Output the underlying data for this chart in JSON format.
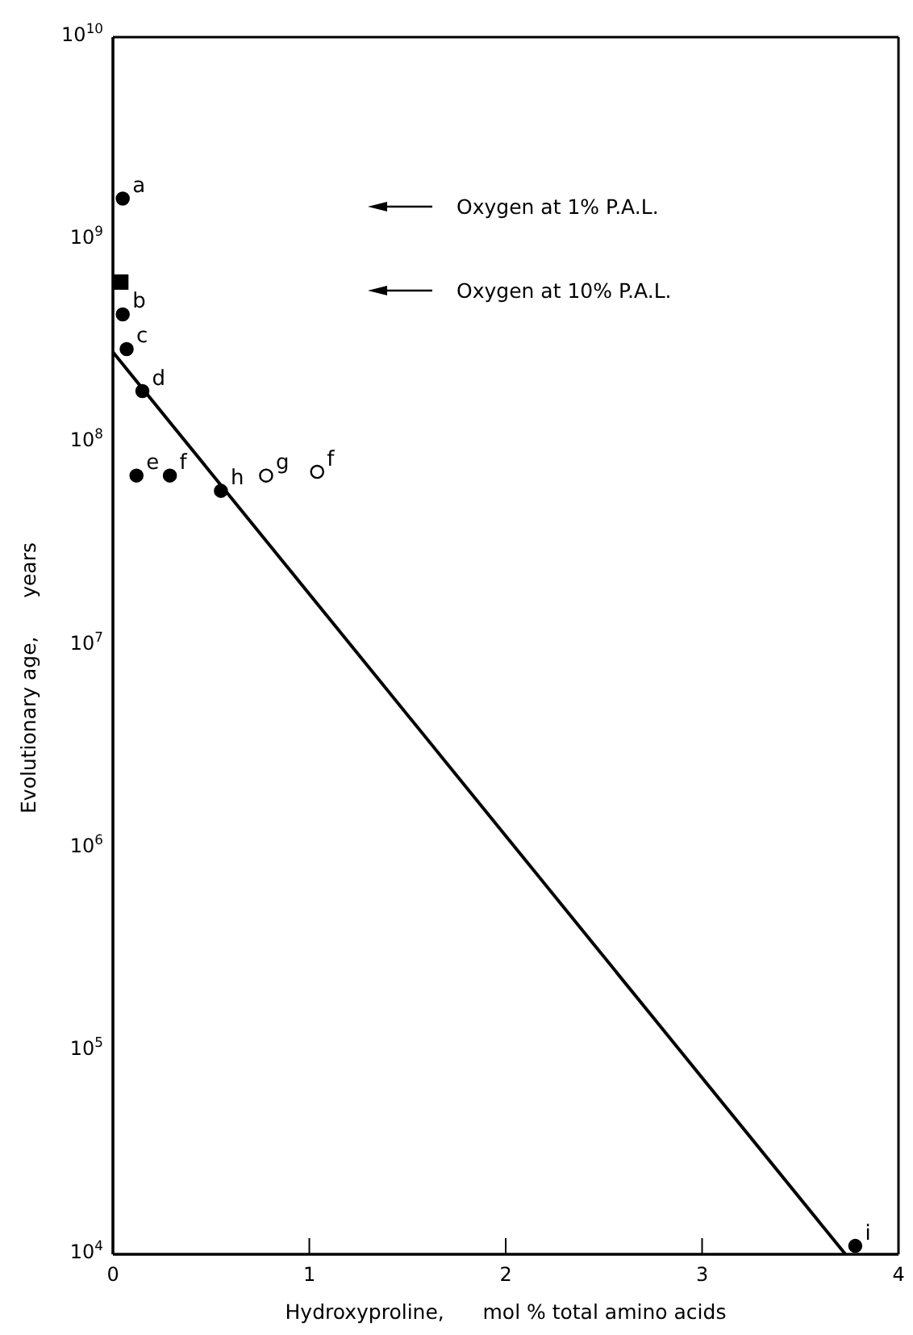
{
  "chart_data": {
    "type": "scatter",
    "xlabel": "Hydroxyproline,      mol % total amino acids",
    "ylabel": "Evolutionary age,      years",
    "log": "y",
    "xlim": [
      0,
      4
    ],
    "ylim": [
      10000,
      10000000000
    ],
    "xticks": [
      0,
      1,
      2,
      3,
      4
    ],
    "yticks": [
      {
        "value": 10000,
        "label": "10$^{4}$"
      },
      {
        "value": 100000,
        "label": "10$^{5}$"
      },
      {
        "value": 1000000,
        "label": "10$^{6}$"
      },
      {
        "value": 10000000,
        "label": "10$^{7}$"
      },
      {
        "value": 100000000,
        "label": "10$^{8}$"
      },
      {
        "value": 1000000000,
        "label": "10$^{9}$"
      },
      {
        "value": 10000000000,
        "label": "10$^{10}$"
      }
    ],
    "grid": false,
    "series": [
      {
        "type": "scatter",
        "marker": "circle",
        "color": "#000000",
        "x": [
          0.05,
          0.05,
          0.07,
          0.15,
          0.12,
          0.29,
          0.55,
          3.78
        ],
        "values": [
          1600000000,
          430000000,
          290000000,
          180000000,
          69000000,
          69000000,
          58000000,
          11000
        ]
      },
      {
        "type": "scatter",
        "marker": "square",
        "color": "#000000",
        "x": [
          0.04
        ],
        "values": [
          620000000
        ]
      },
      {
        "type": "scatter",
        "marker": "circle",
        "color": "#ffffff",
        "x": [
          0.78,
          1.04
        ],
        "values": [
          69000000,
          72000000
        ]
      },
      {
        "type": "line",
        "marker": "none",
        "line_style": "solid",
        "color": "#000000",
        "x": [
          0,
          3.73
        ],
        "values": [
          280000000,
          10000
        ]
      }
    ],
    "annotations": [
      {
        "text": "a",
        "x": 0.05,
        "y": 1600000000
      },
      {
        "text": "b",
        "x": 0.05,
        "y": 430000000
      },
      {
        "text": "c",
        "x": 0.07,
        "y": 290000000
      },
      {
        "text": "d",
        "x": 0.15,
        "y": 180000000
      },
      {
        "text": "e",
        "x": 0.12,
        "y": 69000000
      },
      {
        "text": "f",
        "x": 0.29,
        "y": 69000000
      },
      {
        "text": "h",
        "x": 0.55,
        "y": 58000000
      },
      {
        "text": "i",
        "x": 3.78,
        "y": 11000
      },
      {
        "text": "g",
        "x": 0.78,
        "y": 69000000
      },
      {
        "text": "f",
        "x": 1.04,
        "y": 72000000
      },
      "Oxygen at 1% P.A.L.",
      "Oxygen at 10% P.A.L."
    ]
  }
}
